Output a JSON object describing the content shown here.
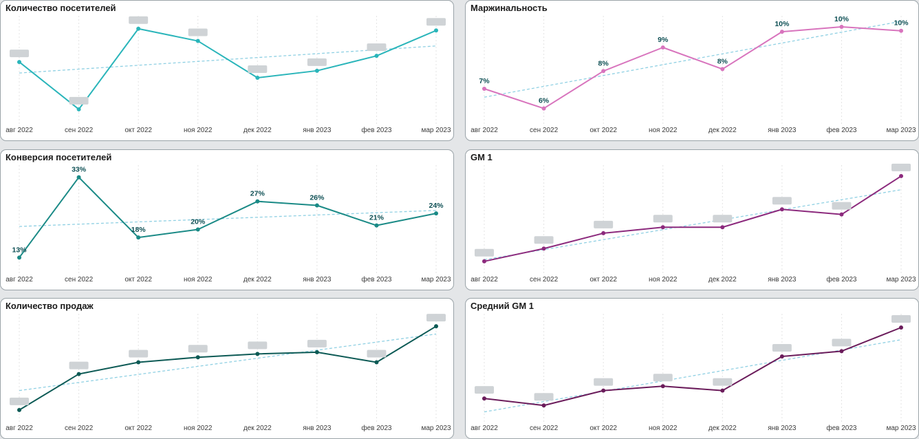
{
  "categories": [
    "авг 2022",
    "сен 2022",
    "окт 2022",
    "ноя 2022",
    "дек 2022",
    "янв 2023",
    "фев 2023",
    "мар 2023"
  ],
  "chart_data": [
    {
      "id": "visitors",
      "type": "line",
      "title": "Количество посетителей",
      "categories": [
        "авг 2022",
        "сен 2022",
        "окт 2022",
        "ноя 2022",
        "дек 2022",
        "янв 2023",
        "фев 2023",
        "мар 2023"
      ],
      "series": [
        {
          "values": [
            0.62,
            0.08,
            1.0,
            0.86,
            0.44,
            0.52,
            0.69,
            0.98
          ]
        }
      ],
      "labels_hidden": true,
      "ylim": [
        0,
        1.1
      ],
      "trendline": true,
      "color": "#2ab5ba"
    },
    {
      "id": "margin",
      "type": "line",
      "title": "Маржинальность",
      "categories": [
        "авг 2022",
        "сен 2022",
        "окт 2022",
        "ноя 2022",
        "дек 2022",
        "янв 2023",
        "фев 2023",
        "мар 2023"
      ],
      "series": [
        {
          "values": [
            7,
            6,
            8,
            9,
            8,
            10,
            10,
            10
          ]
        }
      ],
      "plot_values": [
        7.1,
        6.1,
        8.0,
        9.2,
        8.1,
        10.0,
        10.25,
        10.05
      ],
      "data_labels": [
        "7%",
        "6%",
        "8%",
        "9%",
        "8%",
        "10%",
        "10%",
        "10%"
      ],
      "ylim": [
        5.7,
        10.6
      ],
      "trendline": true,
      "color": "#d874bd"
    },
    {
      "id": "conversion",
      "type": "line",
      "title": "Конверсия посетителей",
      "categories": [
        "авг 2022",
        "сен 2022",
        "окт 2022",
        "ноя 2022",
        "дек 2022",
        "янв 2023",
        "фев 2023",
        "мар 2023"
      ],
      "series": [
        {
          "values": [
            13,
            33,
            18,
            20,
            27,
            26,
            21,
            24
          ]
        }
      ],
      "data_labels": [
        "13%",
        "33%",
        "18%",
        "20%",
        "27%",
        "26%",
        "21%",
        "24%"
      ],
      "ylim": [
        11,
        35
      ],
      "trendline": true,
      "color": "#1a8a86"
    },
    {
      "id": "gm1",
      "type": "line",
      "title": "GM 1",
      "categories": [
        "авг 2022",
        "сен 2022",
        "окт 2022",
        "ноя 2022",
        "дек 2022",
        "янв 2023",
        "фев 2023",
        "мар 2023"
      ],
      "series": [
        {
          "values": [
            0.0,
            0.15,
            0.33,
            0.4,
            0.4,
            0.61,
            0.55,
            1.0
          ]
        }
      ],
      "labels_hidden": true,
      "ylim": [
        -0.05,
        1.08
      ],
      "trendline": true,
      "color": "#8c2a7d"
    },
    {
      "id": "sales",
      "type": "line",
      "title": "Количество продаж",
      "categories": [
        "авг 2022",
        "сен 2022",
        "окт 2022",
        "ноя 2022",
        "дек 2022",
        "янв 2023",
        "фев 2023",
        "мар 2023"
      ],
      "series": [
        {
          "values": [
            0.0,
            0.43,
            0.57,
            0.63,
            0.67,
            0.69,
            0.57,
            1.0
          ]
        }
      ],
      "labels_hidden": true,
      "ylim": [
        -0.05,
        1.1
      ],
      "trendline": true,
      "color": "#0d5a55"
    },
    {
      "id": "avg_gm1",
      "type": "line",
      "title": "Средний GM 1",
      "categories": [
        "авг 2022",
        "сен 2022",
        "окт 2022",
        "ноя 2022",
        "дек 2022",
        "янв 2023",
        "фев 2023",
        "мар 2023"
      ],
      "series": [
        {
          "values": [
            0.08,
            0.0,
            0.17,
            0.22,
            0.17,
            0.56,
            0.62,
            0.89
          ]
        }
      ],
      "labels_hidden": true,
      "ylim": [
        -0.1,
        1.0
      ],
      "trendline": true,
      "color": "#6b1c5b"
    }
  ],
  "colors": {
    "trendline": "#8fd0e3",
    "gridline": "#e3e3e3",
    "masked_label": "#cfd3d6"
  }
}
